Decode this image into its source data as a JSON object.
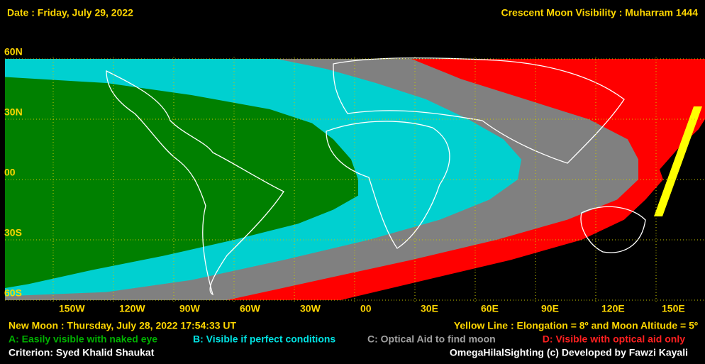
{
  "header": {
    "date": "Date : Friday, July 29, 2022",
    "title": "Crescent Moon Visibility : Muharram  1444"
  },
  "map": {
    "lat_labels": [
      "60N",
      "30N",
      "00",
      "30S",
      "60S"
    ],
    "lon_labels": [
      "150W",
      "120W",
      "90W",
      "60W",
      "30W",
      "00",
      "30E",
      "60E",
      "90E",
      "120E",
      "150E"
    ]
  },
  "footer": {
    "new_moon": "New Moon : Thursday, July 28, 2022  17:54:33  UT",
    "yellow_line": "Yellow Line : Elongation = 8º  and Moon Altitude = 5º",
    "criterion": "Criterion: Syed Khalid Shaukat",
    "credit": "OmegaHilalSighting  (c)  Developed by Fawzi Kayali"
  },
  "legend": [
    "A: Easily visible with naked eye",
    "B: Visible if perfect conditions",
    "C: Optical Aid to find moon",
    "D: Visible with optical aid only"
  ]
}
